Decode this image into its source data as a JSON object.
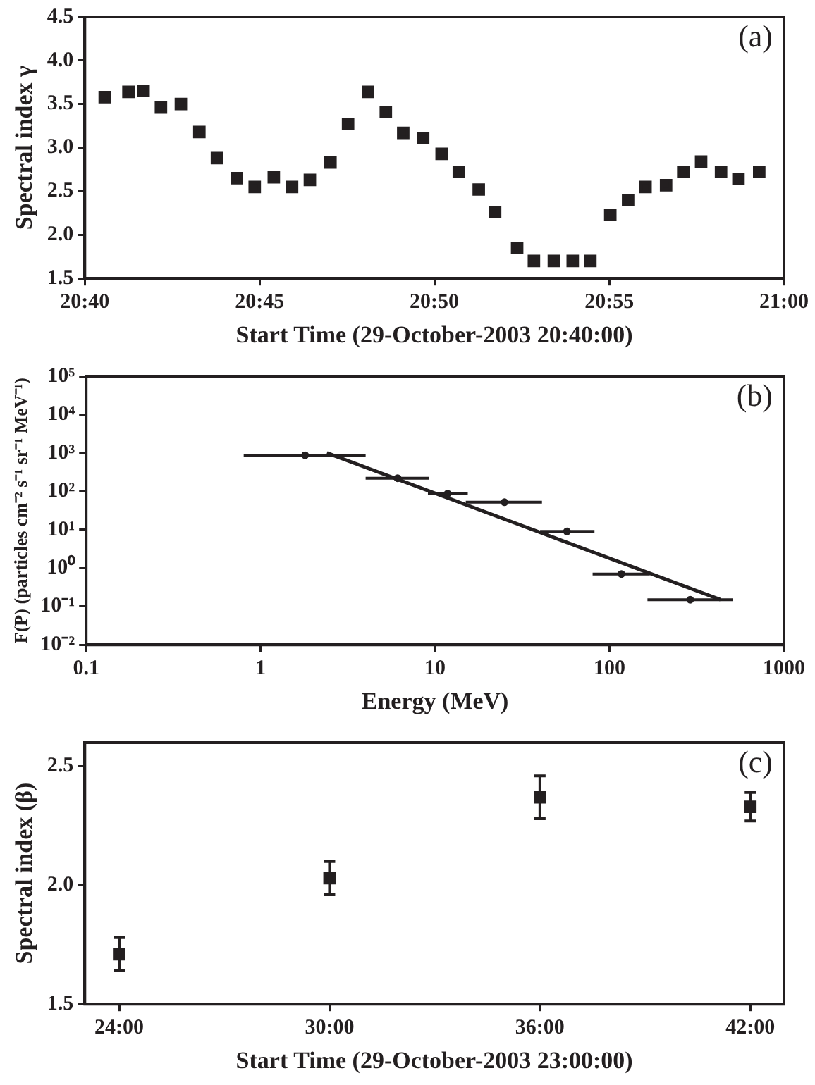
{
  "chart_data": [
    {
      "type": "scatter",
      "xlabel": "Start Time (29-October-2003 20:40:00)",
      "ylabel": "Spectral index γ",
      "annotations": [
        "(a)"
      ],
      "marker": "square",
      "color": "#231f20",
      "x": [
        20.6762,
        20.6875,
        20.6947,
        20.703,
        20.7125,
        20.7213,
        20.7297,
        20.7392,
        20.7477,
        20.7568,
        20.7655,
        20.774,
        20.7838,
        20.7922,
        20.8017,
        20.8102,
        20.8185,
        20.828,
        20.8368,
        20.845,
        20.8545,
        20.8623,
        20.8728,
        20.8808,
        20.8903,
        20.8993,
        20.9077,
        20.9172,
        20.9257,
        20.934,
        20.9438,
        20.952,
        20.9605,
        20.97,
        20.9783,
        20.9882
      ],
      "values": [
        3.58,
        3.64,
        3.65,
        3.46,
        3.5,
        3.18,
        2.88,
        2.65,
        2.55,
        2.66,
        2.55,
        2.63,
        2.83,
        3.27,
        3.64,
        3.41,
        3.17,
        3.11,
        2.93,
        2.72,
        2.52,
        2.26,
        1.85,
        1.7,
        1.7,
        1.7,
        1.7,
        2.23,
        2.4,
        2.55,
        2.57,
        2.72,
        2.84,
        2.72,
        2.64,
        2.72
      ],
      "xlim": [
        20.6667,
        21
      ],
      "xticks": [
        {
          "value": 20.6667,
          "label": "20:40"
        },
        {
          "value": 20.75,
          "label": "20:45"
        },
        {
          "value": 20.8333,
          "label": "20:50"
        },
        {
          "value": 20.9167,
          "label": "20:55"
        },
        {
          "value": 21,
          "label": "21:00"
        }
      ],
      "ylim": [
        1.5,
        4.5
      ],
      "yticks": [
        1.5,
        {
          "value": 2,
          "label": "2.0"
        },
        2.5,
        {
          "value": 3,
          "label": "3.0"
        },
        3.5,
        {
          "value": 4,
          "label": "4.0"
        },
        4.5
      ]
    },
    {
      "type": "scatter",
      "xlabel": "Energy (MeV)",
      "ylabel": "F(P) (particles cm⁻² s⁻¹ sr⁻¹ MeV⁻¹)",
      "annotations": [
        "(b)"
      ],
      "log": "xy",
      "series": [
        {
          "type": "scatter",
          "color": "#231f20",
          "x": [
            1.8,
            6.1,
            11.8,
            25,
            57,
            117,
            290
          ],
          "values": [
            870,
            220,
            87,
            52,
            9,
            0.7,
            0.15
          ],
          "xerrors": [
            [
              0.8,
              4
            ],
            [
              4,
              9.2
            ],
            [
              9.1,
              15.4
            ],
            [
              15,
              41
            ],
            [
              40,
              82
            ],
            [
              80,
              170
            ],
            [
              165,
              510
            ]
          ]
        },
        {
          "type": "line",
          "color": "#231f20",
          "marker": "none",
          "x": [
            2.4,
            433
          ],
          "values": [
            1000,
            0.15
          ]
        }
      ],
      "xlim": [
        0.1,
        1000
      ],
      "xticks": [
        0.1,
        1,
        10,
        100,
        1000
      ],
      "ylim": [
        0.01,
        100000
      ],
      "yticks": [
        {
          "value": 0.01,
          "label": "10⁻²"
        },
        {
          "value": 0.1,
          "label": "10⁻¹"
        },
        {
          "value": 1,
          "label": "10⁰"
        },
        {
          "value": 10,
          "label": "10¹"
        },
        {
          "value": 100,
          "label": "10²"
        },
        {
          "value": 1000,
          "label": "10³"
        },
        {
          "value": 10000,
          "label": "10⁴"
        },
        {
          "value": 100000,
          "label": "10⁵"
        }
      ]
    },
    {
      "type": "scatter",
      "xlabel": "Start Time (29-October-2003 23:00:00)",
      "ylabel": "Spectral index (β)",
      "annotations": [
        "(c)"
      ],
      "marker": "square",
      "color": "#231f20",
      "x": [
        24,
        30,
        36,
        42
      ],
      "values": [
        1.71,
        2.03,
        2.37,
        2.33
      ],
      "errors": [
        0.07,
        0.07,
        0.09,
        0.06
      ],
      "xlim": [
        23.02,
        42.96
      ],
      "xticks": [
        {
          "value": 24,
          "label": "24:00"
        },
        {
          "value": 30,
          "label": "30:00"
        },
        {
          "value": 36,
          "label": "36:00"
        },
        {
          "value": 42,
          "label": "42:00"
        }
      ],
      "ylim": [
        1.5,
        2.6
      ],
      "yticks": [
        1.5,
        {
          "value": 2,
          "label": "2.0"
        },
        2.5
      ]
    }
  ]
}
